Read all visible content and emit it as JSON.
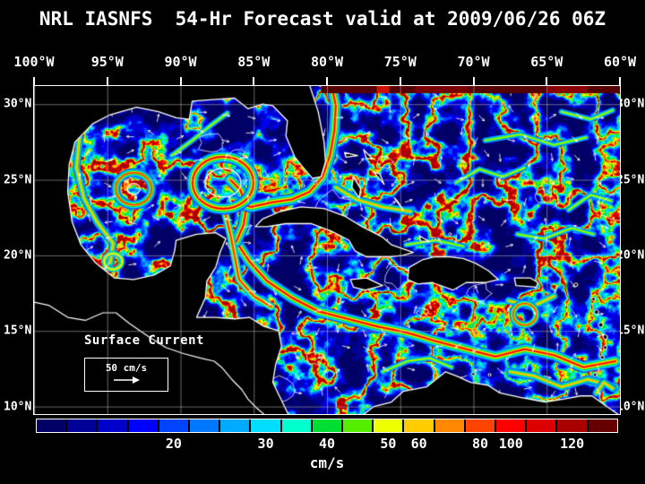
{
  "title": "NRL IASNFS  54-Hr Forecast valid at 2009/06/26 06Z",
  "map": {
    "extent": {
      "lon_min": -100,
      "lon_max": -60,
      "lat_min": 9.5,
      "lat_max": 31.2
    },
    "x_axis": {
      "ticks": [
        {
          "label": "100°W",
          "lon": -100
        },
        {
          "label": "95°W",
          "lon": -95
        },
        {
          "label": "90°W",
          "lon": -90
        },
        {
          "label": "85°W",
          "lon": -85
        },
        {
          "label": "80°W",
          "lon": -80
        },
        {
          "label": "75°W",
          "lon": -75
        },
        {
          "label": "70°W",
          "lon": -70
        },
        {
          "label": "65°W",
          "lon": -65
        },
        {
          "label": "60°W",
          "lon": -60
        }
      ]
    },
    "y_axis": {
      "ticks": [
        {
          "label": "30°N",
          "lat": 30
        },
        {
          "label": "25°N",
          "lat": 25
        },
        {
          "label": "20°N",
          "lat": 20
        },
        {
          "label": "15°N",
          "lat": 15
        },
        {
          "label": "10°N",
          "lat": 10
        }
      ]
    },
    "legend": {
      "label": "Surface Current",
      "scale_text": "50 cm/s"
    }
  },
  "colorbar": {
    "units": "cm/s",
    "segments": [
      {
        "color": "#000066",
        "label": ""
      },
      {
        "color": "#000099",
        "label": ""
      },
      {
        "color": "#0000cc",
        "label": ""
      },
      {
        "color": "#0000ff",
        "label": ""
      },
      {
        "color": "#0044ff",
        "label": "20"
      },
      {
        "color": "#0077ff",
        "label": ""
      },
      {
        "color": "#00aaff",
        "label": ""
      },
      {
        "color": "#00ddff",
        "label": "30"
      },
      {
        "color": "#00ffcc",
        "label": ""
      },
      {
        "color": "#00dd33",
        "label": "40"
      },
      {
        "color": "#55ee00",
        "label": ""
      },
      {
        "color": "#eeff00",
        "label": "50"
      },
      {
        "color": "#ffcc00",
        "label": "60"
      },
      {
        "color": "#ff8800",
        "label": ""
      },
      {
        "color": "#ff4400",
        "label": "80"
      },
      {
        "color": "#ff0000",
        "label": "100"
      },
      {
        "color": "#dd0000",
        "label": ""
      },
      {
        "color": "#aa0000",
        "label": "120"
      },
      {
        "color": "#660000",
        "label": ""
      }
    ]
  }
}
